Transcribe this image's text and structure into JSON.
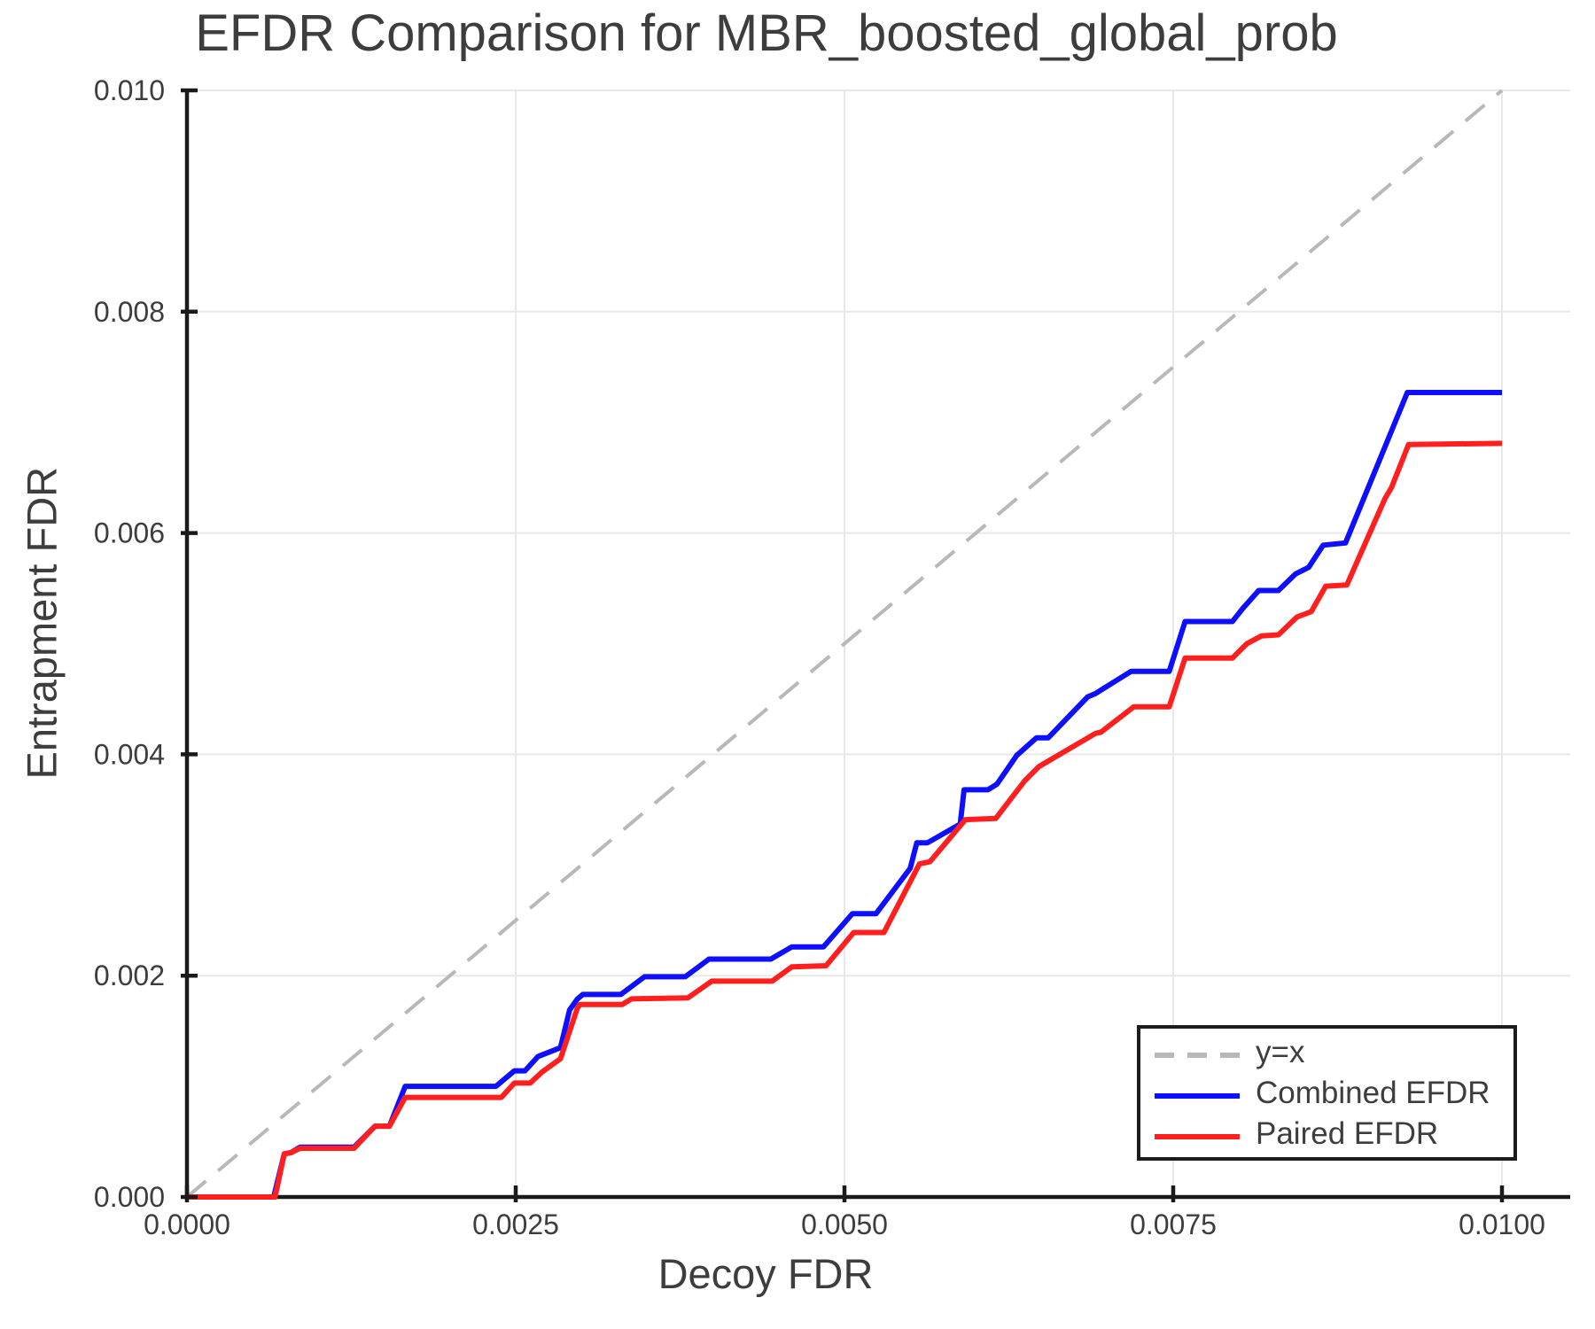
{
  "chart_data": {
    "type": "line",
    "title": "EFDR Comparison for MBR_boosted_global_prob",
    "xlabel": "Decoy FDR",
    "ylabel": "Entrapment FDR",
    "xlim": [
      0.0,
      0.01052
    ],
    "ylim": [
      0.0,
      0.01
    ],
    "grid": true,
    "legend_position": "lower right",
    "xticks": {
      "values": [
        0.0,
        0.0025,
        0.005,
        0.0075,
        0.01
      ],
      "labels": [
        "0.0000",
        "0.0025",
        "0.0050",
        "0.0075",
        "0.0100"
      ]
    },
    "yticks": {
      "values": [
        0.0,
        0.002,
        0.004,
        0.006,
        0.008,
        0.01
      ],
      "labels": [
        "0.000",
        "0.002",
        "0.004",
        "0.006",
        "0.008",
        "0.010"
      ]
    },
    "colors": {
      "grid": "#e8e8e8",
      "spine": "#1a1a1a",
      "text": "#3d3d3d",
      "reference": "#b8b8b8",
      "combined": "#0f0fff",
      "paired": "#ff1f1f"
    },
    "series": [
      {
        "name": "y=x",
        "color": "#b8b8b8",
        "style": "dashed",
        "width": 4,
        "points": [
          [
            0.0,
            0.0
          ],
          [
            0.01,
            0.01
          ]
        ]
      },
      {
        "name": "Combined EFDR",
        "color": "#0f0fff",
        "style": "solid",
        "width": 6,
        "points": [
          [
            0.0,
            0.0
          ],
          [
            0.00066,
            0.0
          ],
          [
            0.00074,
            0.00039
          ],
          [
            0.00079,
            0.0004
          ],
          [
            0.00086,
            0.00045
          ],
          [
            0.00127,
            0.00045
          ],
          [
            0.00143,
            0.00064
          ],
          [
            0.00154,
            0.00064
          ],
          [
            0.00166,
            0.001
          ],
          [
            0.00235,
            0.001
          ],
          [
            0.00249,
            0.00114
          ],
          [
            0.00257,
            0.00114
          ],
          [
            0.00267,
            0.00127
          ],
          [
            0.00284,
            0.00135
          ],
          [
            0.00291,
            0.00169
          ],
          [
            0.00297,
            0.00179
          ],
          [
            0.00301,
            0.00183
          ],
          [
            0.0033,
            0.00183
          ],
          [
            0.00348,
            0.00199
          ],
          [
            0.00379,
            0.00199
          ],
          [
            0.00397,
            0.00215
          ],
          [
            0.00444,
            0.00215
          ],
          [
            0.0046,
            0.00226
          ],
          [
            0.00484,
            0.00226
          ],
          [
            0.00506,
            0.00256
          ],
          [
            0.00524,
            0.00256
          ],
          [
            0.0055,
            0.00297
          ],
          [
            0.00555,
            0.0032
          ],
          [
            0.00563,
            0.0032
          ],
          [
            0.00588,
            0.00337
          ],
          [
            0.00591,
            0.00368
          ],
          [
            0.00609,
            0.00368
          ],
          [
            0.00616,
            0.00373
          ],
          [
            0.00631,
            0.00399
          ],
          [
            0.00646,
            0.00415
          ],
          [
            0.00655,
            0.00415
          ],
          [
            0.00685,
            0.00452
          ],
          [
            0.00691,
            0.00455
          ],
          [
            0.00718,
            0.00475
          ],
          [
            0.00747,
            0.00475
          ],
          [
            0.00759,
            0.0052
          ],
          [
            0.00795,
            0.0052
          ],
          [
            0.00803,
            0.00532
          ],
          [
            0.00815,
            0.00548
          ],
          [
            0.0083,
            0.00548
          ],
          [
            0.00843,
            0.00563
          ],
          [
            0.00853,
            0.00569
          ],
          [
            0.00864,
            0.00589
          ],
          [
            0.00881,
            0.00591
          ],
          [
            0.00928,
            0.00727
          ],
          [
            0.01,
            0.00727
          ]
        ]
      },
      {
        "name": "Paired EFDR",
        "color": "#ff1f1f",
        "style": "solid",
        "width": 6,
        "points": [
          [
            0.0,
            0.0
          ],
          [
            0.00067,
            0.0
          ],
          [
            0.00074,
            0.00039
          ],
          [
            0.00079,
            0.0004
          ],
          [
            0.00086,
            0.00044
          ],
          [
            0.00127,
            0.00044
          ],
          [
            0.00143,
            0.00064
          ],
          [
            0.00154,
            0.00064
          ],
          [
            0.00166,
            0.0009
          ],
          [
            0.00239,
            0.0009
          ],
          [
            0.00249,
            0.00103
          ],
          [
            0.00261,
            0.00103
          ],
          [
            0.0027,
            0.00113
          ],
          [
            0.00284,
            0.00125
          ],
          [
            0.00297,
            0.00171
          ],
          [
            0.00299,
            0.00174
          ],
          [
            0.00331,
            0.00174
          ],
          [
            0.00338,
            0.00179
          ],
          [
            0.00381,
            0.0018
          ],
          [
            0.00399,
            0.00195
          ],
          [
            0.00445,
            0.00195
          ],
          [
            0.0046,
            0.00208
          ],
          [
            0.00486,
            0.00209
          ],
          [
            0.00507,
            0.00239
          ],
          [
            0.0053,
            0.00239
          ],
          [
            0.00557,
            0.00301
          ],
          [
            0.00565,
            0.00303
          ],
          [
            0.00592,
            0.00341
          ],
          [
            0.00615,
            0.00342
          ],
          [
            0.00637,
            0.00376
          ],
          [
            0.00648,
            0.00389
          ],
          [
            0.00691,
            0.00419
          ],
          [
            0.00695,
            0.0042
          ],
          [
            0.0072,
            0.00443
          ],
          [
            0.00747,
            0.00443
          ],
          [
            0.00759,
            0.00487
          ],
          [
            0.00795,
            0.00487
          ],
          [
            0.00806,
            0.005
          ],
          [
            0.00817,
            0.00507
          ],
          [
            0.0083,
            0.00508
          ],
          [
            0.00844,
            0.00524
          ],
          [
            0.00855,
            0.00529
          ],
          [
            0.00866,
            0.00552
          ],
          [
            0.00882,
            0.00553
          ],
          [
            0.00911,
            0.00631
          ],
          [
            0.00916,
            0.00641
          ],
          [
            0.00929,
            0.0068
          ],
          [
            0.01,
            0.00681
          ]
        ]
      }
    ]
  }
}
